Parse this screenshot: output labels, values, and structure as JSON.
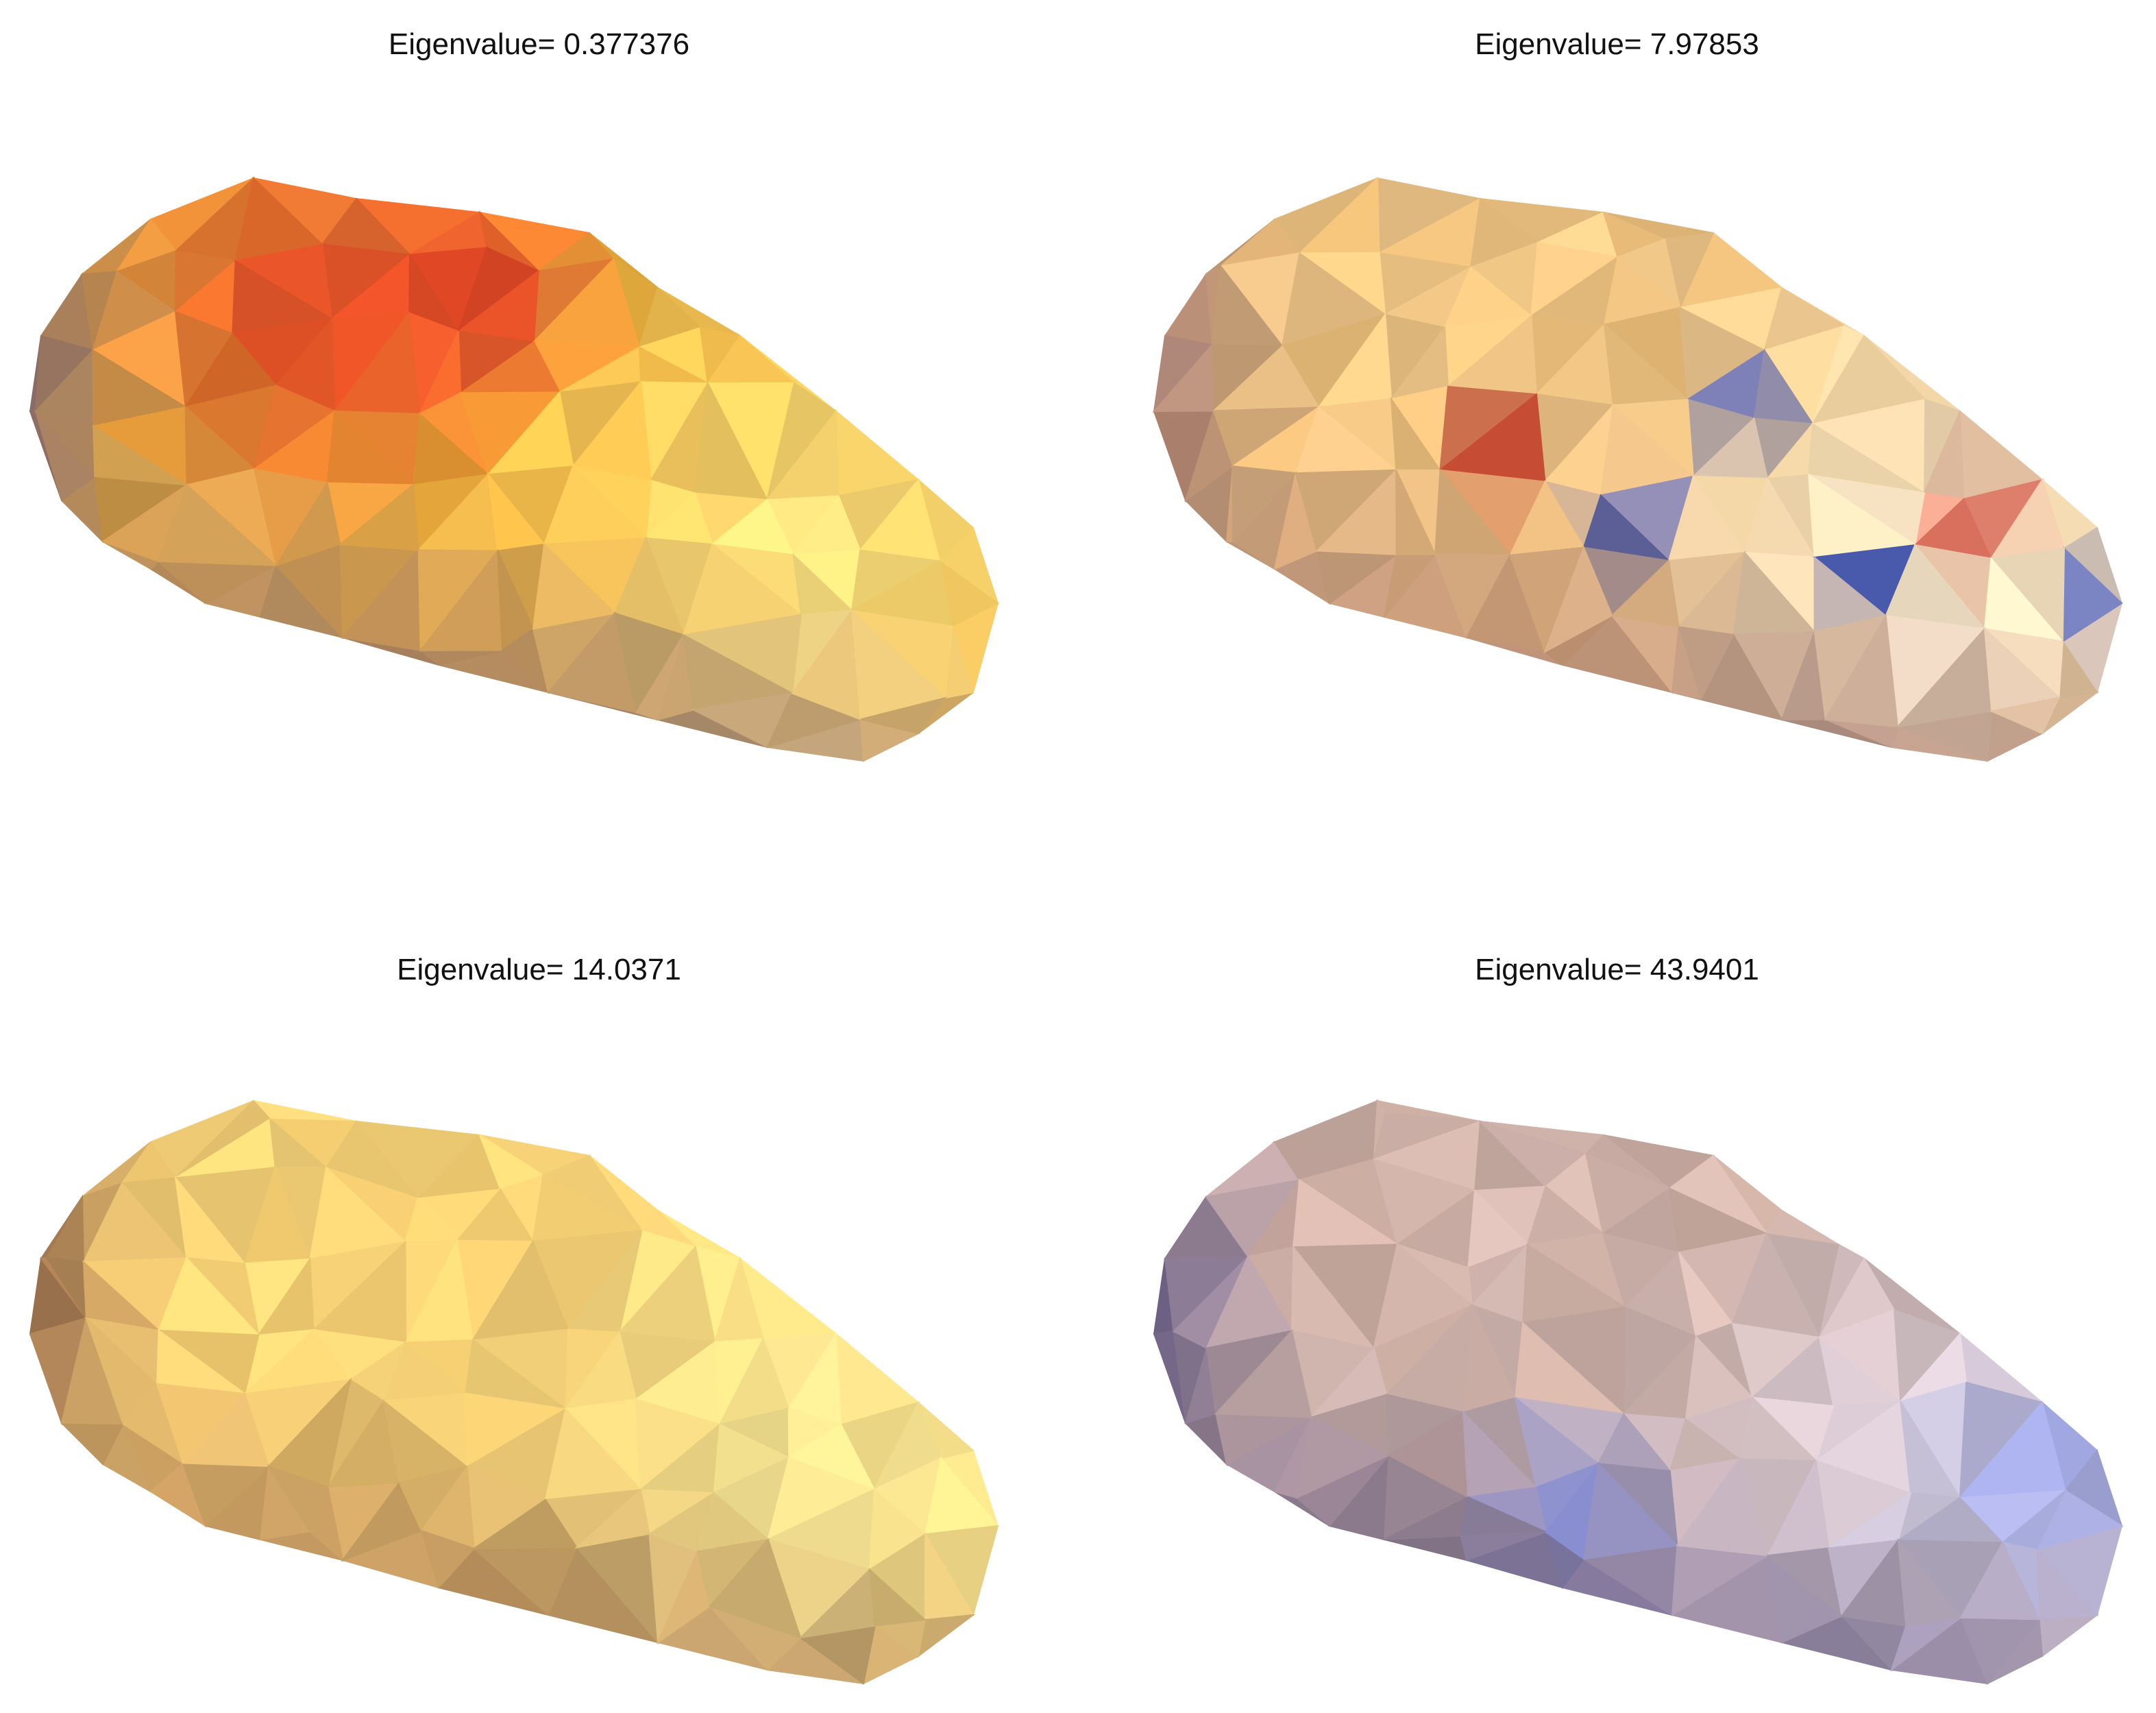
{
  "panels": [
    {
      "title": "Eigenvalue= 0.377376",
      "colors": {
        "shade": "#5a4a82",
        "base": "#f6b43a",
        "highlight": "#fff39a",
        "spot": "#d92b1e"
      }
    },
    {
      "title": "Eigenvalue= 7.97853",
      "colors": {
        "shade": "#6a4660",
        "base": "#f2c27a",
        "highlight": "#fffdf2",
        "spot1": "#cc2a1f",
        "spot2": "#3048b8"
      }
    },
    {
      "title": "Eigenvalue= 14.0371",
      "colors": {
        "shade": "#6b3a3a",
        "base": "#f7cf72",
        "highlight": "#fff6a6"
      }
    },
    {
      "title": "Eigenvalue= 43.9401",
      "colors": {
        "shade": "#3c3a78",
        "base": "#d0b0a4",
        "highlight": "#dcdcf4",
        "accent": "#8a9ae8"
      }
    }
  ]
}
